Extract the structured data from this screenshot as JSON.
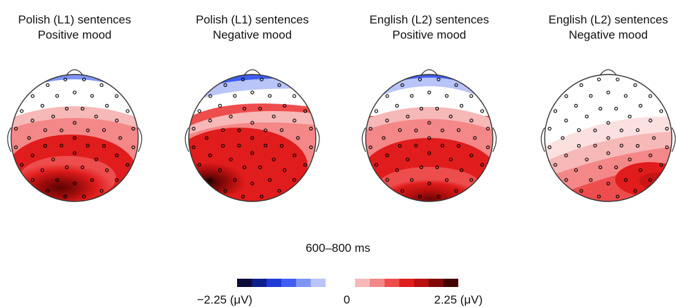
{
  "panels": [
    {
      "line1": "Polish (L1) sentences",
      "line2": "Positive mood"
    },
    {
      "line1": "Polish (L1) sentences",
      "line2": "Negative mood"
    },
    {
      "line1": "English (L2) sentences",
      "line2": "Positive mood"
    },
    {
      "line1": "English (L2) sentences",
      "line2": "Negative mood"
    }
  ],
  "time_window": "600–800 ms",
  "colorbar": {
    "min_label": "−2.25 (μV)",
    "zero_label": "0",
    "max_label": "2.25 (μV)",
    "colors": [
      "#0b0b3a",
      "#0e1f8c",
      "#1f3bd6",
      "#3f5ef0",
      "#7f95f4",
      "#b9c4f8",
      "#ffffff",
      "#ffffff",
      "#f7b8b8",
      "#f48787",
      "#ee4d4d",
      "#e01c1c",
      "#b80f0f",
      "#830808",
      "#420202"
    ]
  },
  "colors": {
    "electrode": "#000000",
    "head_outline": "#333333"
  }
}
